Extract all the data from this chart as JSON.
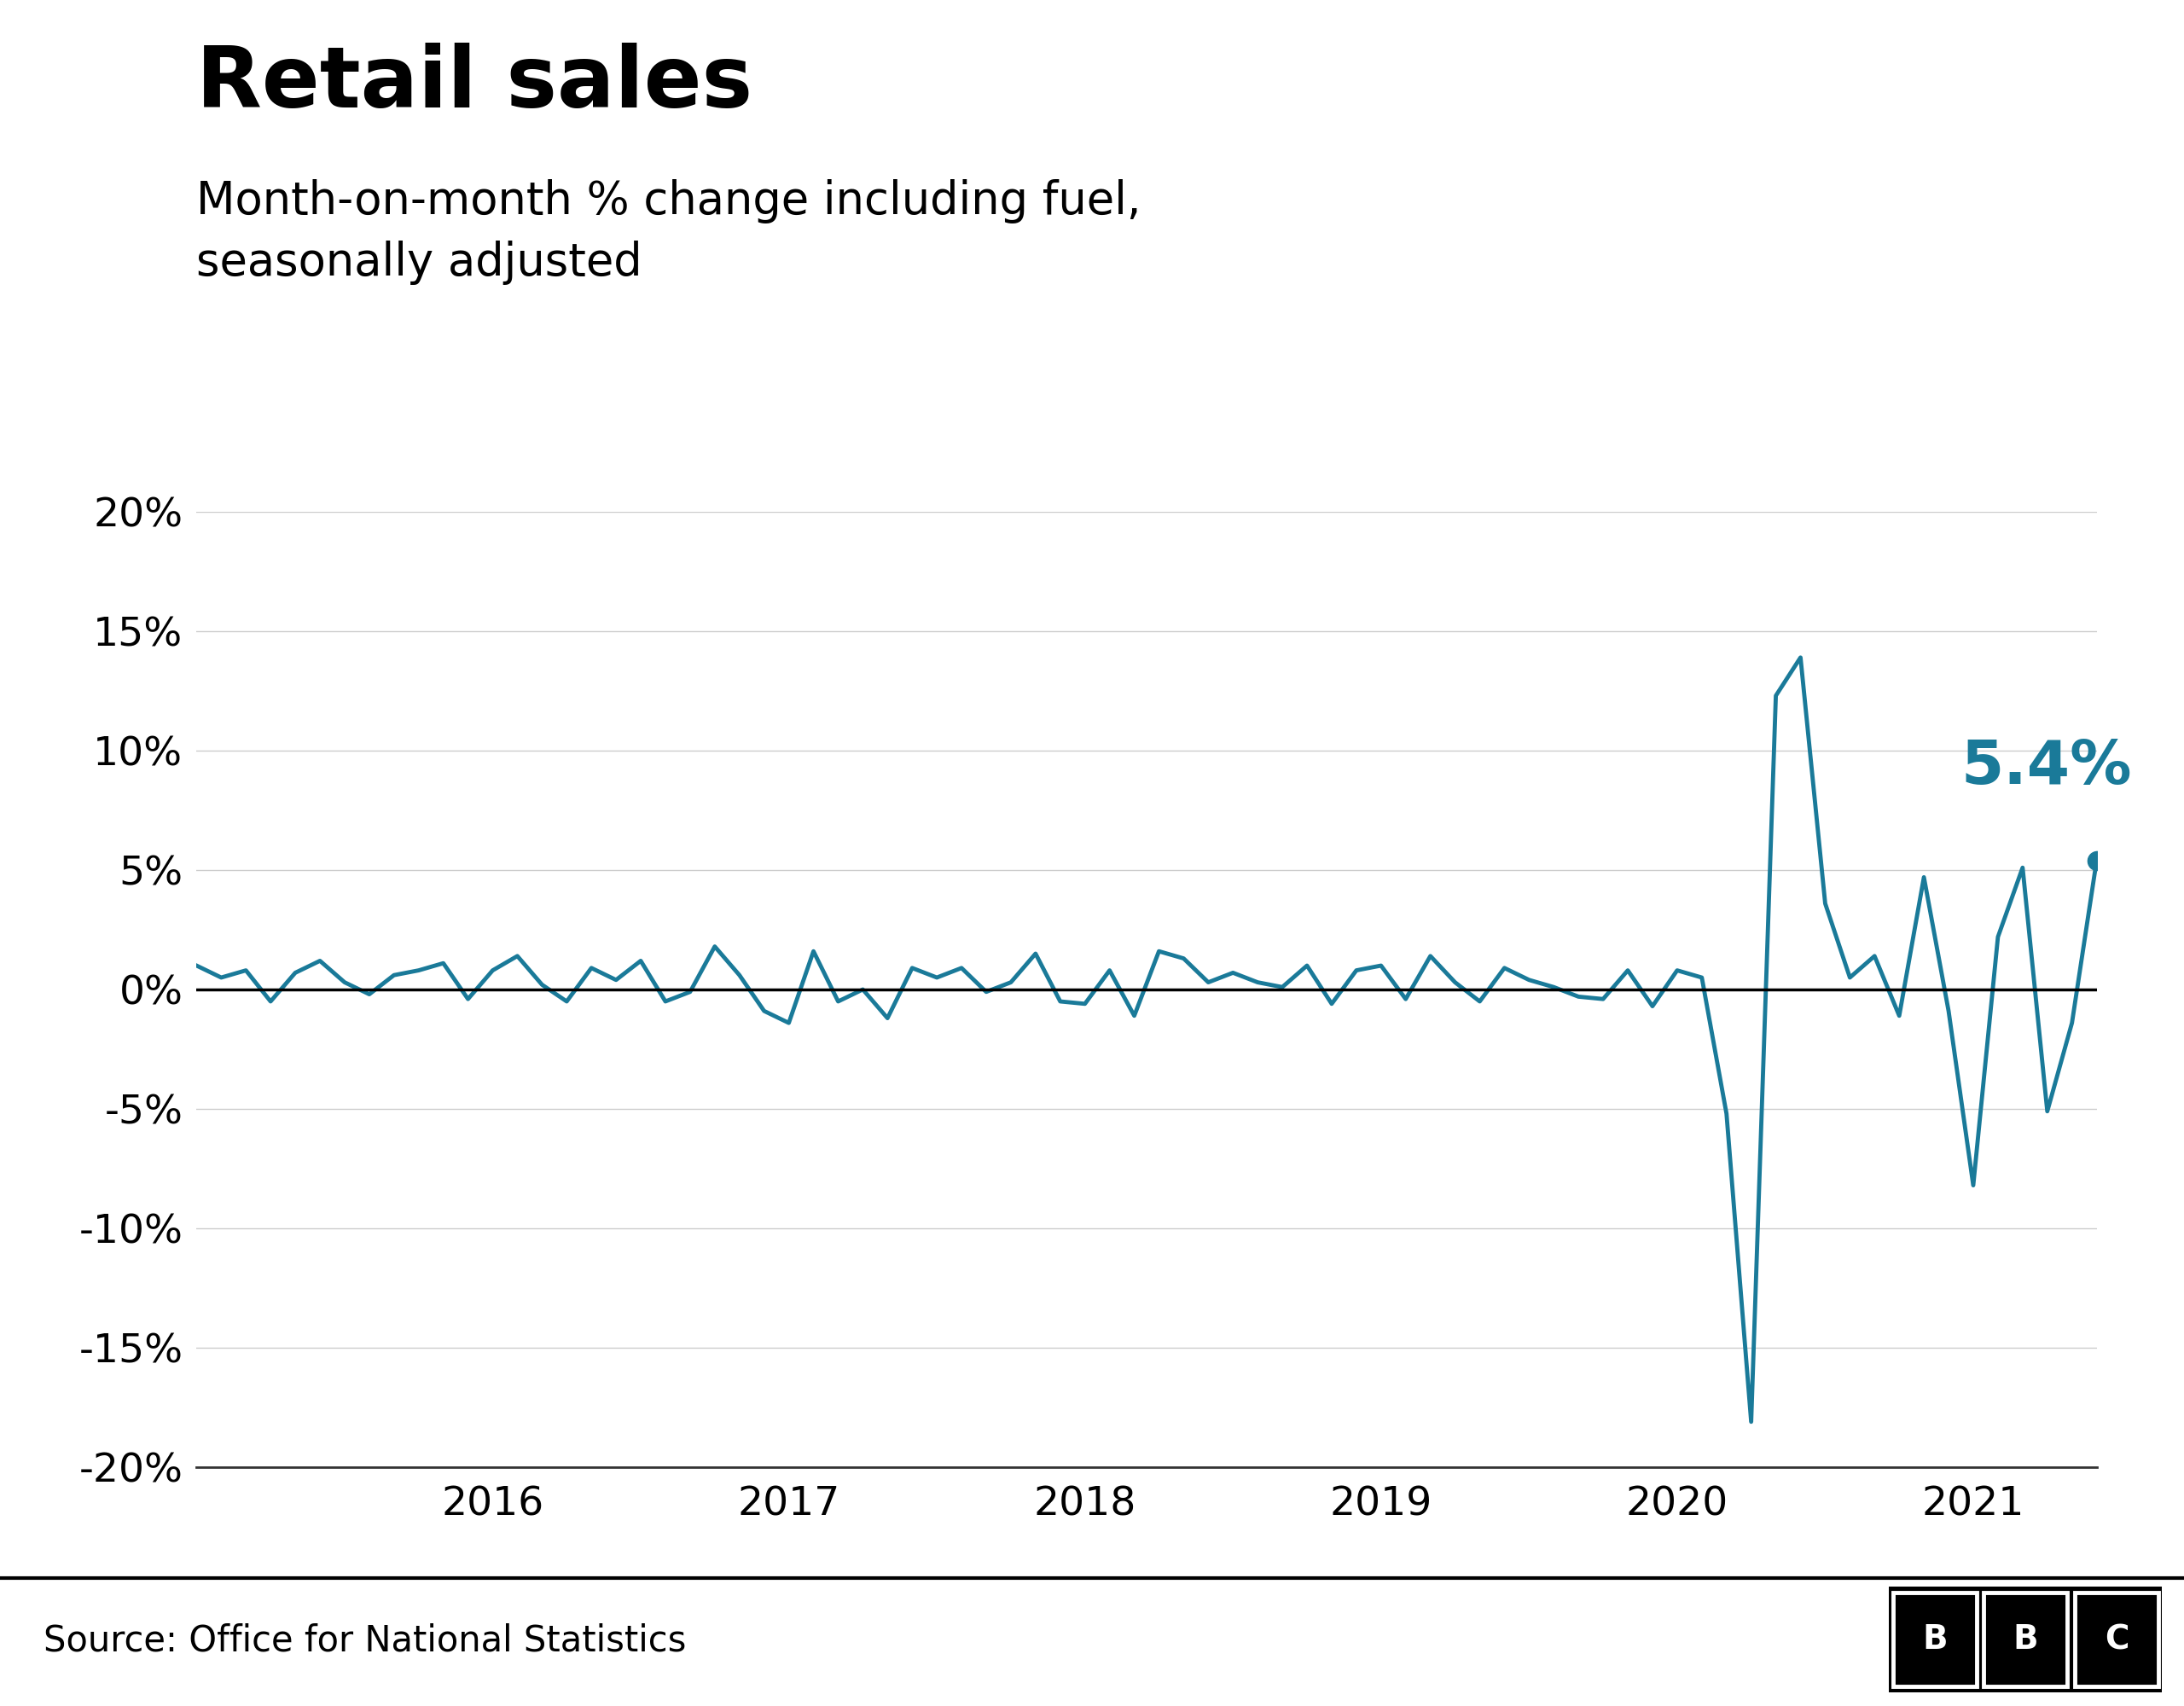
{
  "title": "Retail sales",
  "subtitle": "Month-on-month % change including fuel,\nseasonally adjusted",
  "source": "Source: Office for National Statistics",
  "line_color": "#1a7a99",
  "annotation_value": "5.4%",
  "annotation_color": "#1a7a99",
  "background_color": "#ffffff",
  "ylim": [
    -20,
    20
  ],
  "yticks": [
    -20,
    -15,
    -10,
    -5,
    0,
    5,
    10,
    15,
    20
  ],
  "values": [
    1.0,
    0.5,
    0.8,
    -0.5,
    0.7,
    1.2,
    0.3,
    -0.2,
    0.6,
    0.8,
    1.1,
    -0.4,
    0.8,
    1.4,
    0.2,
    -0.5,
    0.9,
    0.4,
    1.2,
    -0.5,
    -0.1,
    1.8,
    0.6,
    -0.9,
    -1.4,
    1.6,
    -0.5,
    0.0,
    -1.2,
    0.9,
    0.5,
    0.9,
    -0.1,
    0.3,
    1.5,
    -0.5,
    -0.6,
    0.8,
    -1.1,
    1.6,
    1.3,
    0.3,
    0.7,
    0.3,
    0.1,
    1.0,
    -0.6,
    0.8,
    1.0,
    -0.4,
    1.4,
    0.3,
    -0.5,
    0.9,
    0.4,
    0.1,
    -0.3,
    -0.4,
    0.8,
    -0.7,
    0.8,
    0.5,
    -5.2,
    -18.1,
    12.3,
    13.9,
    3.6,
    0.5,
    1.4,
    -1.1,
    4.7,
    -0.9,
    -8.2,
    2.2,
    5.1,
    -5.1,
    -1.4,
    5.4
  ],
  "xtick_years": [
    2016,
    2017,
    2018,
    2019,
    2020,
    2021
  ],
  "xtick_positions": [
    12,
    24,
    36,
    48,
    60,
    72
  ],
  "title_fontsize": 72,
  "subtitle_fontsize": 38,
  "tick_fontsize": 34,
  "source_fontsize": 30,
  "annotation_fontsize": 52
}
